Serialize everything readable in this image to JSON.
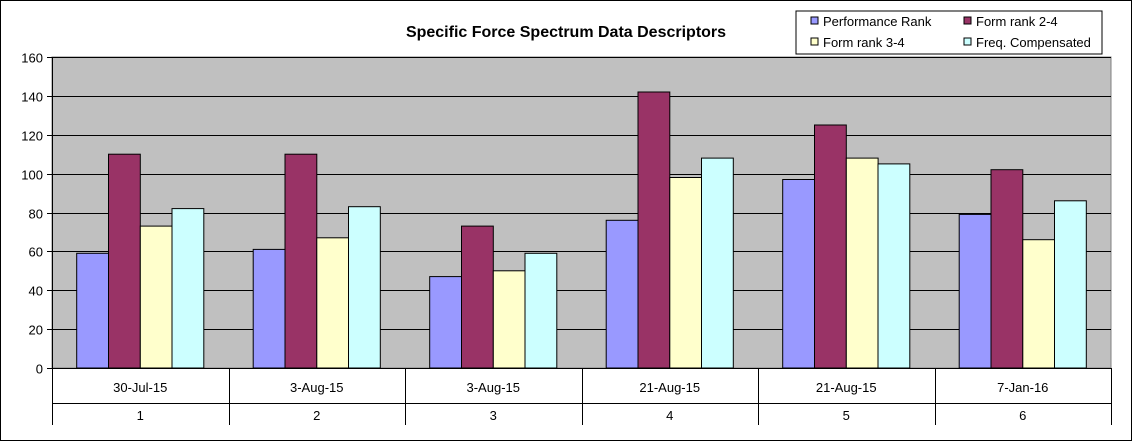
{
  "chart_data": {
    "type": "bar",
    "title": "Specific Force Spectrum Data Descriptors",
    "xlabel": "",
    "ylabel": "",
    "ylim": [
      0,
      160
    ],
    "y_ticks": [
      0,
      20,
      40,
      60,
      80,
      100,
      120,
      140,
      160
    ],
    "grid": true,
    "legend_position": "top-right",
    "categories": [
      "1",
      "2",
      "3",
      "4",
      "5",
      "6"
    ],
    "category_dates": [
      "30-Jul-15",
      "3-Aug-15",
      "3-Aug-15",
      "21-Aug-15",
      "21-Aug-15",
      "7-Jan-16"
    ],
    "series": [
      {
        "name": "Performance Rank",
        "color": "#9999ff",
        "values": [
          59,
          61,
          47,
          76,
          97,
          79
        ]
      },
      {
        "name": "Form rank 2-4",
        "color": "#993366",
        "values": [
          110,
          110,
          73,
          142,
          125,
          102
        ]
      },
      {
        "name": "Form rank 3-4",
        "color": "#ffffcc",
        "values": [
          73,
          67,
          50,
          98,
          108,
          66
        ]
      },
      {
        "name": "Freq. Compensated",
        "color": "#ccffff",
        "values": [
          82,
          83,
          59,
          108,
          105,
          86
        ]
      }
    ],
    "colors": {
      "plot_background": "#c0c0c0",
      "gridline": "#000000"
    }
  }
}
